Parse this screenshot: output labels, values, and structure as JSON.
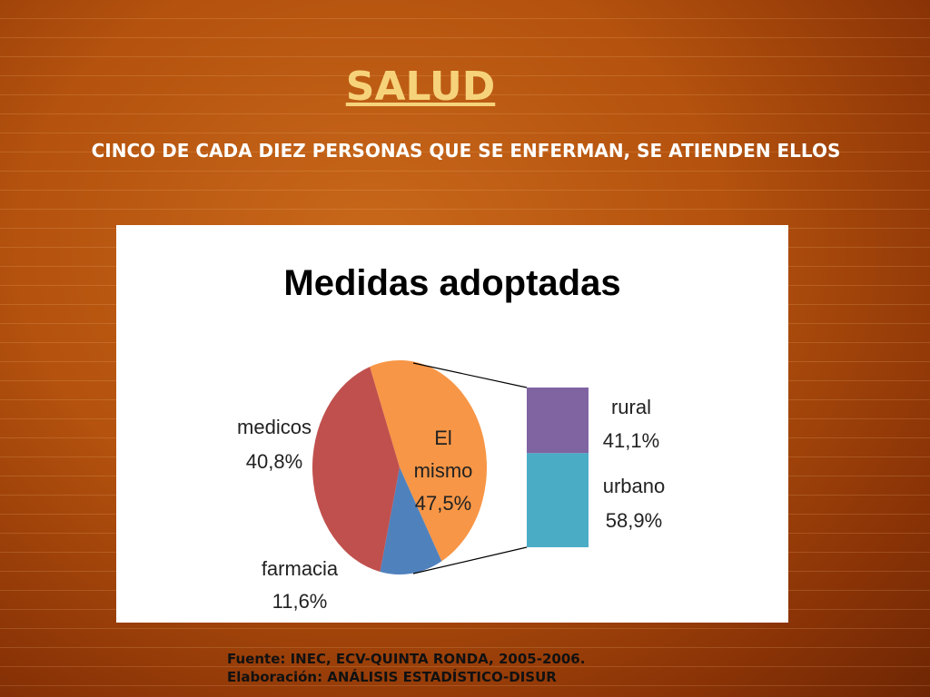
{
  "slide": {
    "title": "SALUD",
    "subtitle": "CINCO DE CADA DIEZ PERSONAS QUE SE ENFERMAN, SE ATIENDEN ELLOS",
    "source_line1": "Fuente: INEC, ECV-QUINTA RONDA, 2005-2006.",
    "source_line2": "Elaboración: ANÁLISIS ESTADÍSTICO-DISUR"
  },
  "chart_data": {
    "type": "pie",
    "title": "Medidas adoptadas",
    "slices": [
      {
        "name": "El mismo",
        "label1": "El",
        "label2": "mismo",
        "value_label": "47,5%",
        "value": 47.5,
        "color": "#f79646"
      },
      {
        "name": "farmacia",
        "label1": "farmacia",
        "value_label": "11,6%",
        "value": 11.6,
        "color": "#4f81bd"
      },
      {
        "name": "medicos",
        "label1": "medicos",
        "value_label": "40,8%",
        "value": 40.8,
        "color": "#c0504d"
      }
    ],
    "breakdown_of": "El mismo",
    "breakdown": [
      {
        "name": "rural",
        "value_label": "41,1%",
        "value": 41.1,
        "color": "#8064a2"
      },
      {
        "name": "urbano",
        "value_label": "58,9%",
        "value": 58.9,
        "color": "#4bacc6"
      }
    ]
  }
}
